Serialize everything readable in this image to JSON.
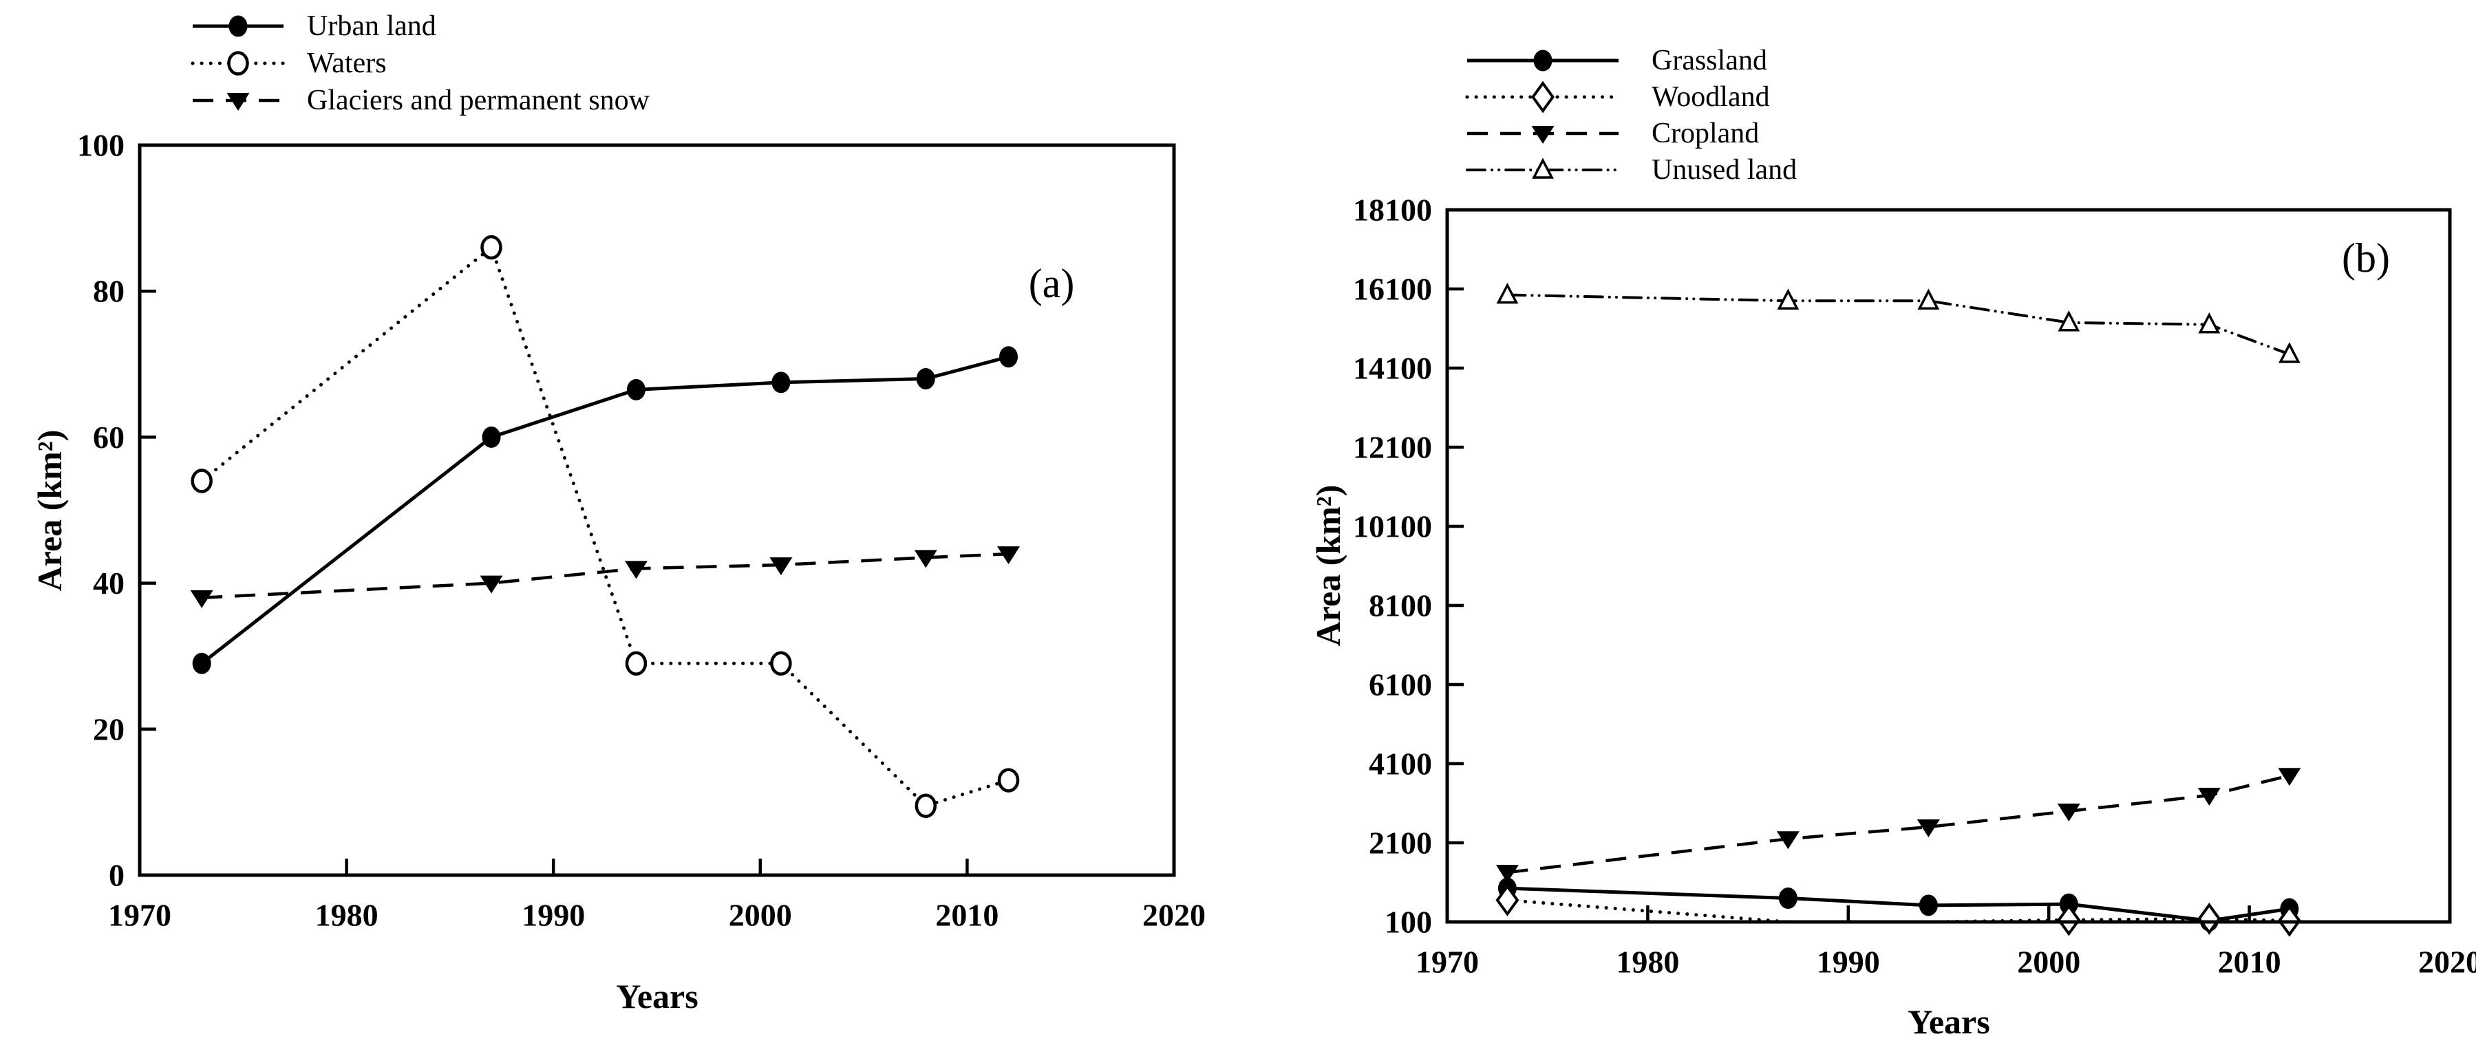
{
  "figure": {
    "background_color": "#ffffff",
    "ink_color": "#000000",
    "description": "Two-panel line chart of land cover area change over years"
  },
  "chart_data": [
    {
      "type": "line",
      "panel_label": "(a)",
      "xlabel": "Years",
      "ylabel": "Area (km²)",
      "xlim": [
        1970,
        2020
      ],
      "ylim": [
        0,
        100
      ],
      "x_ticks": [
        1970,
        1980,
        1990,
        2000,
        2010,
        2020
      ],
      "y_ticks": [
        0,
        20,
        40,
        60,
        80,
        100
      ],
      "grid": false,
      "legend_position": "top-left-above-plot",
      "x": [
        1973,
        1987,
        1994,
        2001,
        2008,
        2012
      ],
      "series": [
        {
          "name": "Urban land",
          "line_style": "solid",
          "marker": "filled-circle",
          "values": [
            29,
            60,
            66.5,
            67.5,
            68,
            71
          ]
        },
        {
          "name": "Waters",
          "line_style": "dotted",
          "marker": "open-circle",
          "values": [
            54,
            86,
            29,
            29,
            9.5,
            13
          ]
        },
        {
          "name": "Glaciers and permanent snow",
          "line_style": "dashed",
          "marker": "filled-triangle-down",
          "values": [
            38,
            40,
            42,
            42.5,
            43.5,
            44
          ]
        }
      ]
    },
    {
      "type": "line",
      "panel_label": "(b)",
      "xlabel": "Years",
      "ylabel": "Area (km²)",
      "xlim": [
        1970,
        2020
      ],
      "ylim": [
        100,
        18100
      ],
      "x_ticks": [
        1970,
        1980,
        1990,
        2000,
        2010,
        2020
      ],
      "y_ticks": [
        100,
        2100,
        4100,
        6100,
        8100,
        10100,
        12100,
        14100,
        16100,
        18100
      ],
      "grid": false,
      "legend_position": "top-left-above-plot",
      "x": [
        1973,
        1987,
        1994,
        2001,
        2008,
        2012
      ],
      "series": [
        {
          "name": "Grassland",
          "line_style": "solid",
          "marker": "filled-circle",
          "values": [
            950,
            700,
            520,
            550,
            130,
            430
          ]
        },
        {
          "name": "Woodland",
          "line_style": "dotted",
          "marker": "open-diamond",
          "values": [
            650,
            100,
            100,
            150,
            180,
            130
          ]
        },
        {
          "name": "Cropland",
          "line_style": "dashed",
          "marker": "filled-triangle-down",
          "values": [
            1350,
            2200,
            2500,
            2900,
            3300,
            3800
          ]
        },
        {
          "name": "Unused land",
          "line_style": "dash-dot-dot",
          "marker": "open-triangle-up",
          "values": [
            15950,
            15800,
            15800,
            15250,
            15200,
            14450
          ]
        }
      ]
    }
  ]
}
